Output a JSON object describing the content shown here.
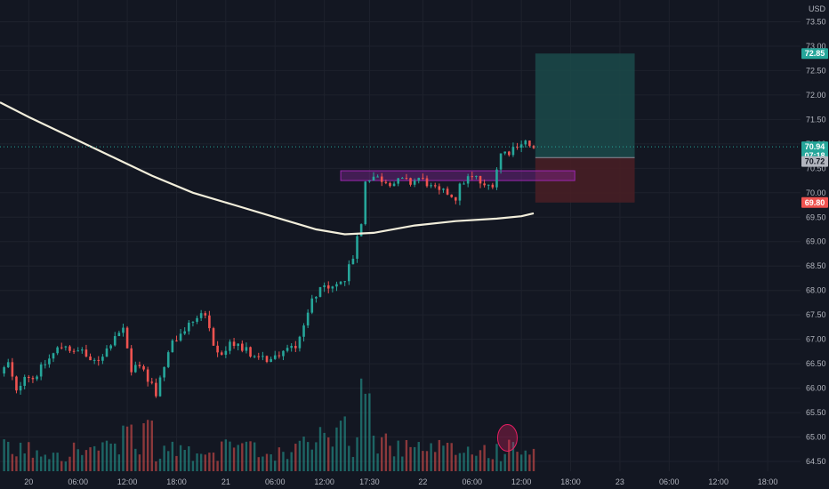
{
  "currency": "USD",
  "colors": {
    "background": "#131722",
    "grid": "#1e222d",
    "up": "#26a69a",
    "down": "#ef5350",
    "ma": "#f2eedb",
    "zone": "#9c27b0",
    "target_fill": "#1b4a4a",
    "stop_fill": "#4a1f24",
    "badge_price": "#b2b5be",
    "circle": "#e91e63"
  },
  "badges": {
    "target": "72.85",
    "current": "70.94",
    "countdown": "07:18",
    "entry": "70.72",
    "stop": "69.80"
  },
  "chart_data": {
    "type": "candlestick",
    "symbol_currency": "USD",
    "ylim": [
      64.3,
      73.8
    ],
    "y_ticks": [
      64.5,
      65.0,
      65.5,
      66.0,
      66.5,
      67.0,
      67.5,
      68.0,
      68.5,
      69.0,
      69.5,
      70.0,
      70.5,
      71.0,
      71.5,
      72.0,
      72.5,
      73.0,
      73.5
    ],
    "x_ticks": [
      "20",
      "06:00",
      "12:00",
      "18:00",
      "21",
      "06:00",
      "12:00",
      "17:30",
      "22",
      "06:00",
      "12:00",
      "18:00",
      "23",
      "06:00",
      "12:00",
      "18:00"
    ],
    "x_tick_hours": [
      0,
      6,
      12,
      18,
      24,
      30,
      36,
      41.5,
      48,
      54,
      60,
      66,
      72,
      78,
      84,
      90
    ],
    "x_range_hours": [
      -3.5,
      94
    ],
    "price_start": 66.3,
    "price_path": [
      [
        -3.5,
        66.3
      ],
      [
        -2.5,
        66.5
      ],
      [
        -1.5,
        65.9
      ],
      [
        -0.5,
        66.3
      ],
      [
        0.5,
        66.2
      ],
      [
        1.5,
        66.4
      ],
      [
        2.5,
        66.6
      ],
      [
        3.5,
        66.8
      ],
      [
        4.5,
        66.9
      ],
      [
        5.5,
        66.7
      ],
      [
        6.5,
        66.8
      ],
      [
        7.5,
        66.5
      ],
      [
        8.5,
        66.6
      ],
      [
        9.5,
        66.8
      ],
      [
        10.5,
        67.1
      ],
      [
        11.5,
        67.2
      ],
      [
        12.5,
        66.3
      ],
      [
        13.5,
        66.5
      ],
      [
        14.5,
        66.2
      ],
      [
        15.5,
        65.9
      ],
      [
        16.5,
        66.5
      ],
      [
        17.5,
        66.9
      ],
      [
        18.5,
        67.1
      ],
      [
        19.5,
        67.3
      ],
      [
        20.5,
        67.5
      ],
      [
        21.5,
        67.5
      ],
      [
        22.5,
        66.8
      ],
      [
        23.5,
        66.7
      ],
      [
        24.5,
        66.9
      ],
      [
        25.5,
        66.9
      ],
      [
        26.5,
        66.8
      ],
      [
        27.5,
        66.6
      ],
      [
        28.5,
        66.6
      ],
      [
        29.5,
        66.6
      ],
      [
        30.5,
        66.7
      ],
      [
        31.5,
        66.8
      ],
      [
        32.5,
        66.9
      ],
      [
        33.5,
        67.3
      ],
      [
        34.5,
        67.8
      ],
      [
        35.5,
        68.1
      ],
      [
        36.5,
        68.0
      ],
      [
        37.5,
        68.1
      ],
      [
        38.5,
        68.2
      ],
      [
        39.5,
        68.7
      ],
      [
        40.5,
        69.4
      ],
      [
        41.0,
        70.2
      ],
      [
        41.7,
        70.35
      ],
      [
        42.5,
        70.3
      ],
      [
        43.5,
        70.25
      ],
      [
        44.5,
        70.2
      ],
      [
        45.5,
        70.25
      ],
      [
        46.5,
        70.2
      ],
      [
        47.5,
        70.3
      ],
      [
        48.5,
        70.2
      ],
      [
        49.0,
        70.1
      ],
      [
        50.0,
        70.0
      ],
      [
        51.0,
        70.0
      ],
      [
        52.0,
        69.9
      ],
      [
        52.7,
        70.2
      ],
      [
        53.5,
        70.3
      ],
      [
        54.5,
        70.3
      ],
      [
        55.5,
        70.1
      ],
      [
        56.5,
        70.2
      ],
      [
        57.5,
        70.8
      ],
      [
        58.5,
        70.85
      ],
      [
        59.5,
        71.0
      ],
      [
        60.5,
        71.05
      ],
      [
        61.5,
        70.85
      ]
    ],
    "moving_average": [
      [
        -3.5,
        71.85
      ],
      [
        0,
        71.55
      ],
      [
        5,
        71.15
      ],
      [
        10,
        70.75
      ],
      [
        15,
        70.35
      ],
      [
        20,
        70.0
      ],
      [
        25,
        69.75
      ],
      [
        30,
        69.5
      ],
      [
        35,
        69.25
      ],
      [
        38.5,
        69.15
      ],
      [
        42,
        69.18
      ],
      [
        47,
        69.33
      ],
      [
        52,
        69.42
      ],
      [
        57,
        69.47
      ],
      [
        60,
        69.52
      ],
      [
        61.5,
        69.58
      ]
    ],
    "volume_max": 100,
    "volume_highlights": [
      [
        41.0,
        95
      ],
      [
        38.0,
        55
      ],
      [
        14.5,
        75
      ],
      [
        12.0,
        65
      ]
    ],
    "annotations": {
      "zone": {
        "x": [
          38.0,
          66.5
        ],
        "y": [
          70.25,
          70.45
        ],
        "label": ""
      },
      "position": {
        "x": [
          61.7,
          73.8
        ],
        "entry": 70.72,
        "target": 72.85,
        "stop": 69.8
      },
      "volume_circle": {
        "x": 58.3,
        "volume": 55
      }
    },
    "current_price": 70.94,
    "title": "",
    "xlabel": "",
    "ylabel": ""
  }
}
